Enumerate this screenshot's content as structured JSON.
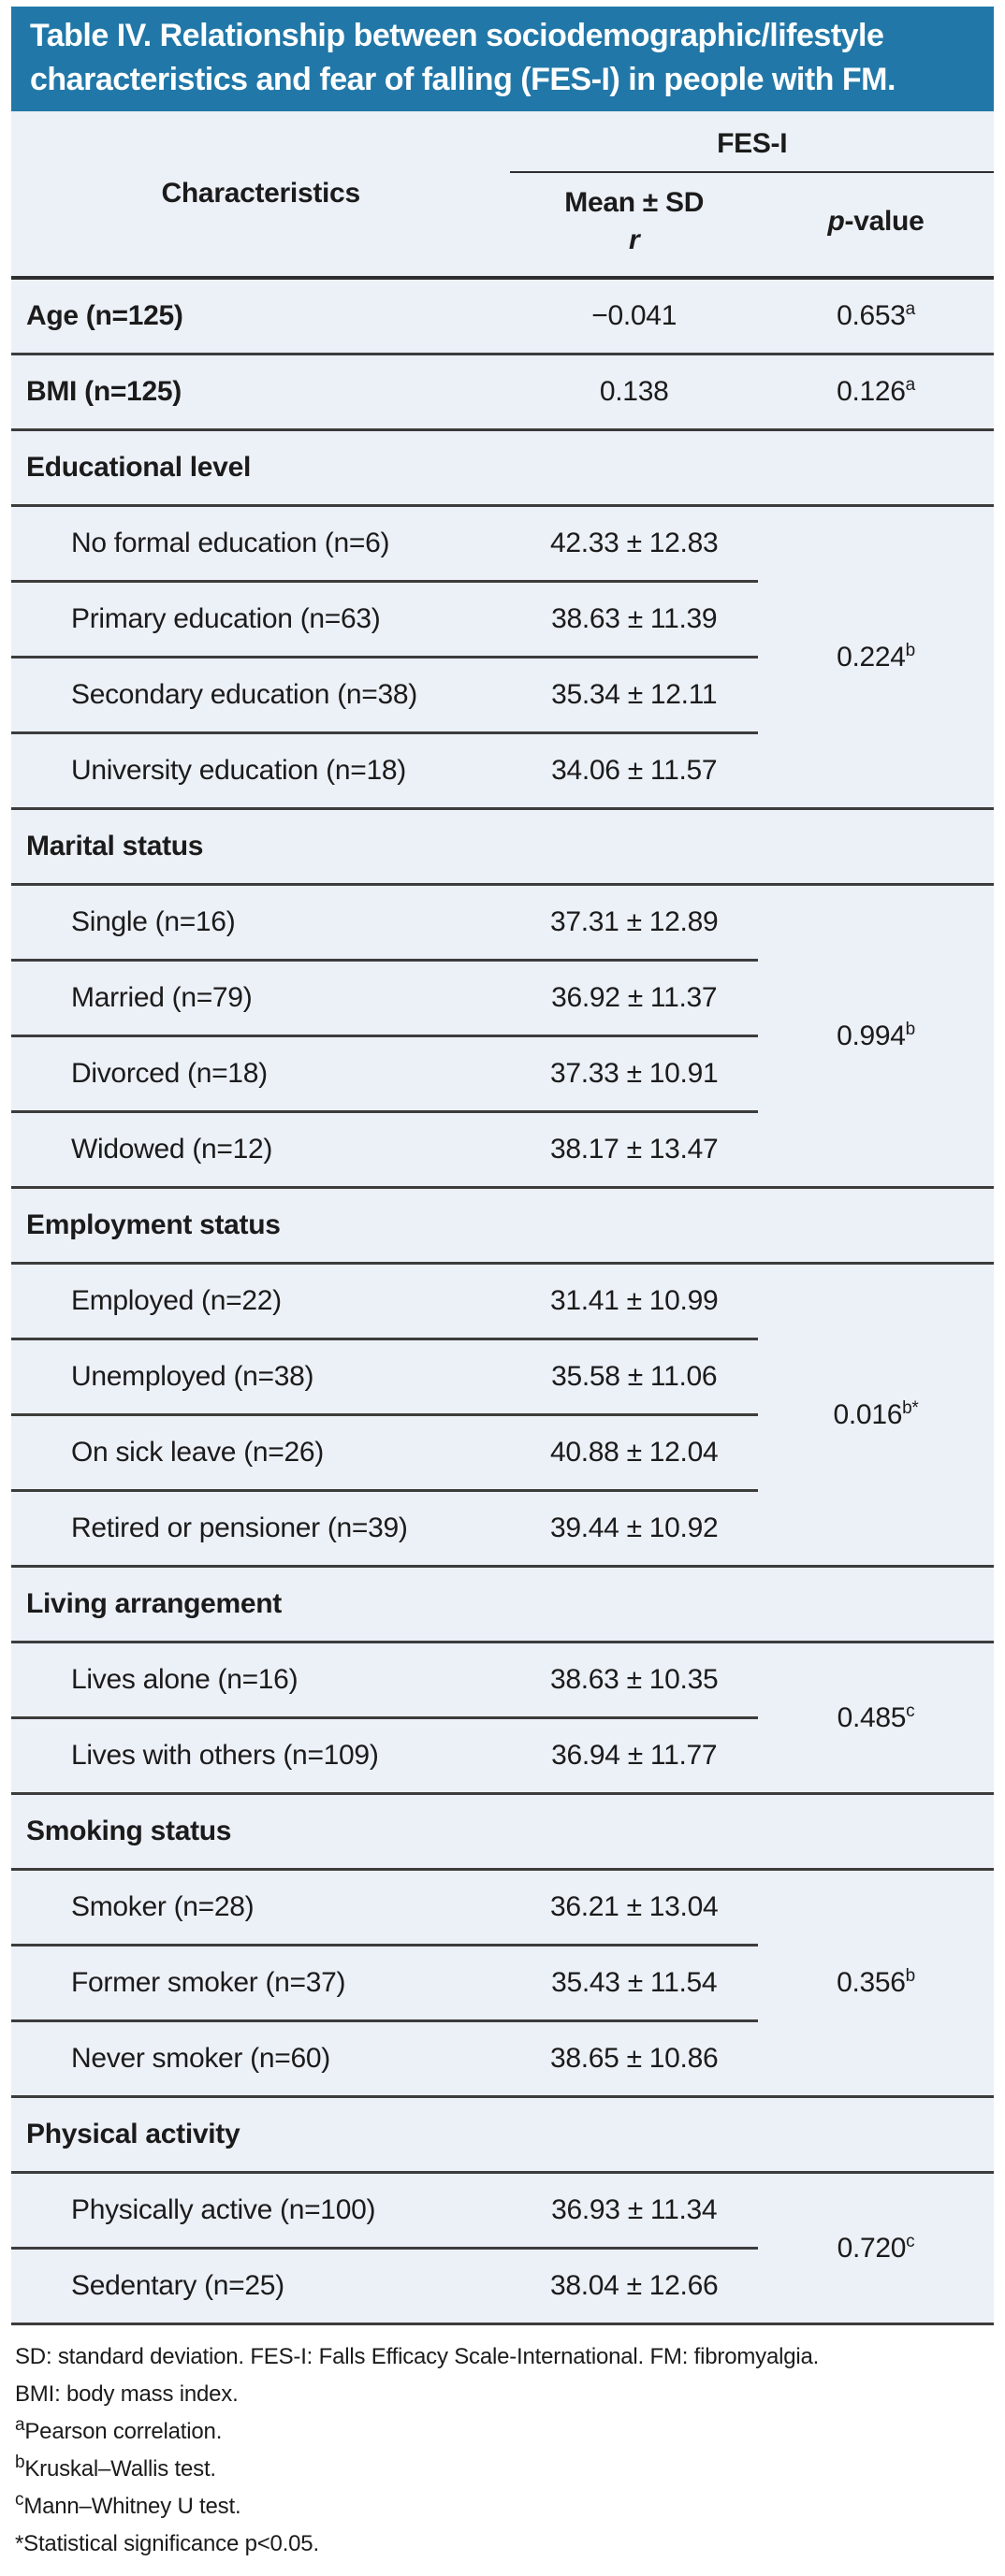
{
  "title": {
    "line1": "Table IV. Relationship between sociodemographic/lifestyle",
    "line2": "characteristics and fear of falling (FES-I) in people with FM."
  },
  "table": {
    "columns": {
      "characteristics": "Characteristics",
      "group": "FES-I",
      "mean_sd": "Mean ± SD",
      "r": "r",
      "p_italic": "p",
      "p_rest": "-value"
    },
    "simple_rows": [
      {
        "label": "Age (n=125)",
        "value": "−0.041",
        "p": "0.653",
        "p_sup": "a"
      },
      {
        "label": "BMI (n=125)",
        "value": "0.138",
        "p": "0.126",
        "p_sup": "a"
      }
    ],
    "sections": [
      {
        "header": "Educational level",
        "p": "0.224",
        "p_sup": "b",
        "rows": [
          {
            "label": "No formal education (n=6)",
            "value": "42.33 ± 12.83"
          },
          {
            "label": "Primary education (n=63)",
            "value": "38.63 ± 11.39"
          },
          {
            "label": "Secondary education (n=38)",
            "value": "35.34 ± 12.11"
          },
          {
            "label": "University education (n=18)",
            "value": "34.06 ± 11.57"
          }
        ]
      },
      {
        "header": "Marital status",
        "p": "0.994",
        "p_sup": "b",
        "rows": [
          {
            "label": "Single (n=16)",
            "value": "37.31 ± 12.89"
          },
          {
            "label": "Married (n=79)",
            "value": "36.92 ± 11.37"
          },
          {
            "label": "Divorced (n=18)",
            "value": "37.33 ± 10.91"
          },
          {
            "label": "Widowed (n=12)",
            "value": "38.17 ± 13.47"
          }
        ]
      },
      {
        "header": "Employment status",
        "p": "0.016",
        "p_sup": "b*",
        "rows": [
          {
            "label": "Employed (n=22)",
            "value": "31.41 ± 10.99"
          },
          {
            "label": "Unemployed (n=38)",
            "value": "35.58 ± 11.06"
          },
          {
            "label": "On sick leave (n=26)",
            "value": "40.88 ± 12.04"
          },
          {
            "label": "Retired or pensioner (n=39)",
            "value": "39.44 ± 10.92"
          }
        ]
      },
      {
        "header": "Living arrangement",
        "p": "0.485",
        "p_sup": "c",
        "rows": [
          {
            "label": "Lives alone (n=16)",
            "value": "38.63 ± 10.35"
          },
          {
            "label": "Lives with others (n=109)",
            "value": "36.94 ± 11.77"
          }
        ]
      },
      {
        "header": "Smoking status",
        "p": "0.356",
        "p_sup": "b",
        "rows": [
          {
            "label": "Smoker (n=28)",
            "value": "36.21 ± 13.04"
          },
          {
            "label": "Former smoker (n=37)",
            "value": "35.43 ± 11.54"
          },
          {
            "label": "Never smoker (n=60)",
            "value": "38.65 ± 10.86"
          }
        ]
      },
      {
        "header": "Physical activity",
        "p": "0.720",
        "p_sup": "c",
        "rows": [
          {
            "label": "Physically active (n=100)",
            "value": "36.93 ± 11.34"
          },
          {
            "label": "Sedentary (n=25)",
            "value": "38.04 ± 12.66"
          }
        ]
      }
    ]
  },
  "footnotes": [
    {
      "sup": "",
      "text": "SD: standard deviation. FES-I: Falls Efficacy Scale-International. FM: fibromyalgia."
    },
    {
      "sup": "",
      "text": "BMI: body mass index."
    },
    {
      "sup": "a",
      "text": "Pearson correlation."
    },
    {
      "sup": "b",
      "text": "Kruskal–Wallis test."
    },
    {
      "sup": "c",
      "text": "Mann–Whitney U test."
    },
    {
      "sup": "",
      "text": "*Statistical significance p<0.05."
    }
  ]
}
